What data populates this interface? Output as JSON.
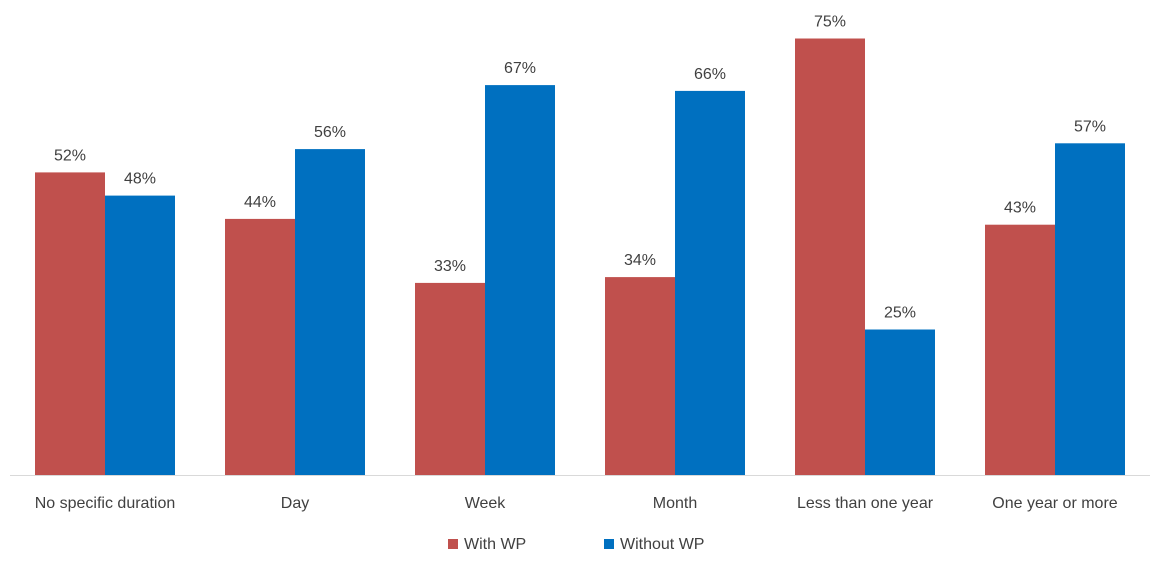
{
  "chart_data": {
    "type": "bar",
    "categories": [
      "No specific duration",
      "Day",
      "Week",
      "Month",
      "Less than one year",
      "One year or more"
    ],
    "series": [
      {
        "name": "With WP",
        "color": "#C0504D",
        "values": [
          52,
          44,
          33,
          34,
          75,
          43
        ],
        "labels": [
          "52%",
          "44%",
          "33%",
          "34%",
          "75%",
          "43%"
        ]
      },
      {
        "name": "Without WP",
        "color": "#0070C0",
        "values": [
          48,
          56,
          67,
          66,
          25,
          57
        ],
        "labels": [
          "48%",
          "56%",
          "67%",
          "66%",
          "25%",
          "57%"
        ]
      }
    ],
    "title": "",
    "xlabel": "",
    "ylabel": "",
    "ylim": [
      0,
      80
    ],
    "grid": false,
    "legend": "bottom-center",
    "axis_color": "#D9D9D9"
  }
}
